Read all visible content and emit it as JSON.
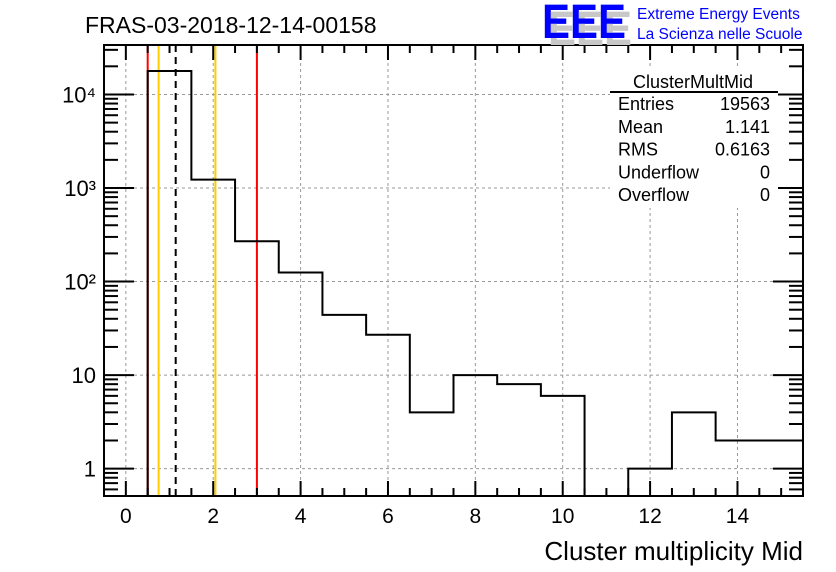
{
  "logo": {
    "mark": "EEE",
    "line1": "Extreme Energy Events",
    "line2": "La Scienza nelle Scuole",
    "color": "#0000ff"
  },
  "stats": {
    "title": "ClusterMultMid",
    "rows": [
      {
        "label": "Entries",
        "value": "19563"
      },
      {
        "label": "Mean",
        "value": "1.141"
      },
      {
        "label": "RMS",
        "value": "0.6163"
      },
      {
        "label": "Underflow",
        "value": "0"
      },
      {
        "label": "Overflow",
        "value": "0"
      }
    ]
  },
  "chart_data": {
    "type": "bar",
    "title": "FRAS-03-2018-12-14-00158",
    "xlabel": "Cluster multiplicity Mid",
    "ylabel": "",
    "xlim": [
      -0.5,
      15.5
    ],
    "ylim": [
      0.51,
      33800
    ],
    "yscale": "log",
    "grid": true,
    "histogram_bin_edges": [
      0.5,
      1.5,
      2.5,
      3.5,
      4.5,
      5.5,
      6.5,
      7.5,
      8.5,
      9.5,
      10.5,
      11.5,
      12.5,
      13.5,
      14.5,
      15.5
    ],
    "bin_centers": [
      1,
      2,
      3,
      4,
      5,
      6,
      7,
      8,
      9,
      10,
      11,
      12,
      13,
      14,
      15
    ],
    "values": [
      17800,
      1230,
      270,
      125,
      44,
      27,
      4,
      10,
      8,
      6,
      0,
      1,
      4,
      2,
      2
    ],
    "x_ticks": [
      0,
      2,
      4,
      6,
      8,
      10,
      12,
      14
    ],
    "x_tick_labels": [
      "0",
      "2",
      "4",
      "6",
      "8",
      "10",
      "12",
      "14"
    ],
    "y_ticks": [
      1,
      10,
      100,
      1000,
      10000
    ],
    "y_tick_labels": [
      "1",
      "10",
      "10²",
      "10³",
      "10⁴"
    ],
    "vertical_lines": [
      {
        "x": 0.5,
        "color": "#ff0000",
        "style": "solid"
      },
      {
        "x": 0.75,
        "color": "#ffcc00",
        "style": "solid"
      },
      {
        "x": 1.141,
        "color": "#000000",
        "style": "dashed"
      },
      {
        "x": 2.05,
        "color": "#ffcc00",
        "style": "solid"
      },
      {
        "x": 3.0,
        "color": "#ff0000",
        "style": "solid"
      }
    ]
  }
}
